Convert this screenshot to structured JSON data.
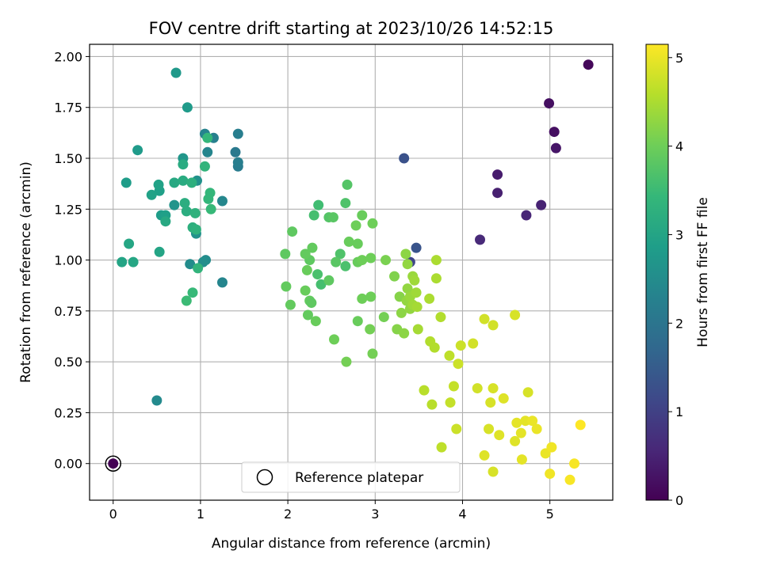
{
  "chart_data": {
    "type": "scatter",
    "title": "FOV centre drift starting at 2023/10/26 14:52:15",
    "xlabel": "Angular distance from reference (arcmin)",
    "ylabel": "Rotation from reference (arcmin)",
    "colorbar_label": "Hours from first FF file",
    "xlim": [
      -0.27,
      5.72
    ],
    "ylim": [
      -0.18,
      2.06
    ],
    "clim": [
      0,
      5.15
    ],
    "colormap": "viridis",
    "x_ticks": [
      0,
      1,
      2,
      3,
      4,
      5
    ],
    "x_tick_labels": [
      "0",
      "1",
      "2",
      "3",
      "4",
      "5"
    ],
    "y_ticks": [
      0,
      0.25,
      0.5,
      0.75,
      1.0,
      1.25,
      1.5,
      1.75,
      2.0
    ],
    "y_tick_labels": [
      "0.00",
      "0.25",
      "0.50",
      "0.75",
      "1.00",
      "1.25",
      "1.50",
      "1.75",
      "2.00"
    ],
    "colorbar_ticks": [
      0,
      1,
      2,
      3,
      4,
      5
    ],
    "colorbar_tick_labels": [
      "0",
      "1",
      "2",
      "3",
      "4",
      "5"
    ],
    "grid": true,
    "legend": {
      "placement": "lower-center",
      "entries": [
        "Reference platepar"
      ]
    },
    "reference_point": {
      "x": 0,
      "y": 0,
      "hours": 0
    },
    "points": [
      [
        5.44,
        1.96,
        0.1
      ],
      [
        4.99,
        1.77,
        0.2
      ],
      [
        5.05,
        1.63,
        0.2
      ],
      [
        5.07,
        1.55,
        0.3
      ],
      [
        4.4,
        1.42,
        0.4
      ],
      [
        4.4,
        1.33,
        0.45
      ],
      [
        4.9,
        1.27,
        0.5
      ],
      [
        4.73,
        1.22,
        0.55
      ],
      [
        4.2,
        1.1,
        0.6
      ],
      [
        3.33,
        1.5,
        1.3
      ],
      [
        3.47,
        1.06,
        1.35
      ],
      [
        3.4,
        0.99,
        1.1
      ],
      [
        0.5,
        0.31,
        2.45
      ],
      [
        1.25,
        0.89,
        2.35
      ],
      [
        1.43,
        1.62,
        2.2
      ],
      [
        1.4,
        1.53,
        2.1
      ],
      [
        1.43,
        1.46,
        2.15
      ],
      [
        1.43,
        1.48,
        2.2
      ],
      [
        1.15,
        1.6,
        2.25
      ],
      [
        1.05,
        1.62,
        2.3
      ],
      [
        1.08,
        1.53,
        2.35
      ],
      [
        1.08,
        1.6,
        3.4
      ],
      [
        1.25,
        1.29,
        2.4
      ],
      [
        1.06,
        1.0,
        2.5
      ],
      [
        0.88,
        0.98,
        2.5
      ],
      [
        1.03,
        0.99,
        2.55
      ],
      [
        0.96,
        1.39,
        2.6
      ],
      [
        0.95,
        1.13,
        2.6
      ],
      [
        0.7,
        1.27,
        2.65
      ],
      [
        0.8,
        1.5,
        2.7
      ],
      [
        0.72,
        1.92,
        2.75
      ],
      [
        0.85,
        1.75,
        2.8
      ],
      [
        0.28,
        1.54,
        2.8
      ],
      [
        0.15,
        1.38,
        2.85
      ],
      [
        0.55,
        1.22,
        2.85
      ],
      [
        0.6,
        1.22,
        2.9
      ],
      [
        0.53,
        1.34,
        2.9
      ],
      [
        0.52,
        1.37,
        2.95
      ],
      [
        0.44,
        1.32,
        2.95
      ],
      [
        0.53,
        1.04,
        3.0
      ],
      [
        0.1,
        0.99,
        3.0
      ],
      [
        0.23,
        0.99,
        3.05
      ],
      [
        0.18,
        1.08,
        3.05
      ],
      [
        0.6,
        1.19,
        3.1
      ],
      [
        0.7,
        1.38,
        3.1
      ],
      [
        0.8,
        1.39,
        3.15
      ],
      [
        0.8,
        1.47,
        3.15
      ],
      [
        0.82,
        1.28,
        3.2
      ],
      [
        0.84,
        1.24,
        3.2
      ],
      [
        0.9,
        1.38,
        3.25
      ],
      [
        0.91,
        1.16,
        3.25
      ],
      [
        0.94,
        1.23,
        3.3
      ],
      [
        0.95,
        1.15,
        3.3
      ],
      [
        0.97,
        0.96,
        3.35
      ],
      [
        1.05,
        1.46,
        3.35
      ],
      [
        1.09,
        1.3,
        3.4
      ],
      [
        1.11,
        1.33,
        3.4
      ],
      [
        1.12,
        1.25,
        3.45
      ],
      [
        0.91,
        0.84,
        3.45
      ],
      [
        0.84,
        0.8,
        3.5
      ],
      [
        2.35,
        1.27,
        3.55
      ],
      [
        2.3,
        1.22,
        3.6
      ],
      [
        2.38,
        0.88,
        3.6
      ],
      [
        2.34,
        0.93,
        3.65
      ],
      [
        2.66,
        0.97,
        3.65
      ],
      [
        2.6,
        1.03,
        3.7
      ],
      [
        2.66,
        1.28,
        3.7
      ],
      [
        2.68,
        1.37,
        3.75
      ],
      [
        2.47,
        1.21,
        3.75
      ],
      [
        2.52,
        1.21,
        3.8
      ],
      [
        2.55,
        0.99,
        3.8
      ],
      [
        2.47,
        0.9,
        3.85
      ],
      [
        2.25,
        1.0,
        3.85
      ],
      [
        2.28,
        1.06,
        3.9
      ],
      [
        2.2,
        1.03,
        3.9
      ],
      [
        2.22,
        0.95,
        3.95
      ],
      [
        2.2,
        0.85,
        3.95
      ],
      [
        2.25,
        0.8,
        3.9
      ],
      [
        2.27,
        0.79,
        3.85
      ],
      [
        2.23,
        0.73,
        3.9
      ],
      [
        2.32,
        0.7,
        3.95
      ],
      [
        2.03,
        0.78,
        3.9
      ],
      [
        1.98,
        0.87,
        3.9
      ],
      [
        1.97,
        1.03,
        3.85
      ],
      [
        2.05,
        1.14,
        3.85
      ],
      [
        2.8,
        1.08,
        3.95
      ],
      [
        2.7,
        1.09,
        3.95
      ],
      [
        2.78,
        1.17,
        4.0
      ],
      [
        2.85,
        1.22,
        3.95
      ],
      [
        2.97,
        1.18,
        4.0
      ],
      [
        2.8,
        0.99,
        3.95
      ],
      [
        2.85,
        1.0,
        4.0
      ],
      [
        2.95,
        1.01,
        4.0
      ],
      [
        2.8,
        0.7,
        3.95
      ],
      [
        2.85,
        0.81,
        4.0
      ],
      [
        2.95,
        0.82,
        4.0
      ],
      [
        2.94,
        0.66,
        4.05
      ],
      [
        2.97,
        0.54,
        4.05
      ],
      [
        2.67,
        0.5,
        4.05
      ],
      [
        2.53,
        0.61,
        4.0
      ],
      [
        3.1,
        0.72,
        4.05
      ],
      [
        3.12,
        1.0,
        4.1
      ],
      [
        3.22,
        0.92,
        4.15
      ],
      [
        3.25,
        0.66,
        4.2
      ],
      [
        3.28,
        0.82,
        4.2
      ],
      [
        3.3,
        0.74,
        4.25
      ],
      [
        3.33,
        0.64,
        4.25
      ],
      [
        3.37,
        0.86,
        4.3
      ],
      [
        3.36,
        0.8,
        4.3
      ],
      [
        3.4,
        0.76,
        4.3
      ],
      [
        3.4,
        0.82,
        4.35
      ],
      [
        3.43,
        0.92,
        4.35
      ],
      [
        3.45,
        0.9,
        4.4
      ],
      [
        3.47,
        0.84,
        4.4
      ],
      [
        3.43,
        0.78,
        4.4
      ],
      [
        3.48,
        0.77,
        4.45
      ],
      [
        3.49,
        0.66,
        4.45
      ],
      [
        3.35,
        1.03,
        4.25
      ],
      [
        3.37,
        0.98,
        4.3
      ],
      [
        3.62,
        0.81,
        4.5
      ],
      [
        3.7,
        1.0,
        4.5
      ],
      [
        3.7,
        0.91,
        4.5
      ],
      [
        3.75,
        0.72,
        4.55
      ],
      [
        3.63,
        0.6,
        4.55
      ],
      [
        3.68,
        0.57,
        4.55
      ],
      [
        3.56,
        0.36,
        4.6
      ],
      [
        3.65,
        0.29,
        4.6
      ],
      [
        3.76,
        0.08,
        4.65
      ],
      [
        3.85,
        0.53,
        4.65
      ],
      [
        3.86,
        0.3,
        4.7
      ],
      [
        3.9,
        0.38,
        4.7
      ],
      [
        3.95,
        0.49,
        4.75
      ],
      [
        3.98,
        0.58,
        4.75
      ],
      [
        3.93,
        0.17,
        4.75
      ],
      [
        4.12,
        0.59,
        4.8
      ],
      [
        4.17,
        0.37,
        4.8
      ],
      [
        4.25,
        0.71,
        4.8
      ],
      [
        4.35,
        0.68,
        4.8
      ],
      [
        4.35,
        0.37,
        4.85
      ],
      [
        4.32,
        0.3,
        4.85
      ],
      [
        4.3,
        0.17,
        4.85
      ],
      [
        4.35,
        -0.04,
        4.85
      ],
      [
        4.25,
        0.04,
        4.9
      ],
      [
        4.42,
        0.14,
        4.9
      ],
      [
        4.47,
        0.32,
        4.9
      ],
      [
        4.6,
        0.11,
        4.9
      ],
      [
        4.62,
        0.2,
        4.95
      ],
      [
        4.67,
        0.15,
        4.95
      ],
      [
        4.68,
        0.02,
        4.95
      ],
      [
        4.72,
        0.21,
        4.95
      ],
      [
        4.75,
        0.35,
        4.85
      ],
      [
        4.6,
        0.73,
        4.85
      ],
      [
        4.8,
        0.21,
        5.0
      ],
      [
        4.85,
        0.17,
        5.0
      ],
      [
        4.95,
        0.05,
        5.0
      ],
      [
        5.02,
        0.08,
        5.05
      ],
      [
        5.0,
        -0.05,
        5.05
      ],
      [
        5.23,
        -0.08,
        5.1
      ],
      [
        5.28,
        0.0,
        5.1
      ],
      [
        5.35,
        0.19,
        5.15
      ]
    ]
  },
  "colors": {
    "axes": "#000000",
    "grid": "#b0b0b0",
    "reference_fill": "#440154",
    "viridis": [
      "#440154",
      "#482878",
      "#3e4989",
      "#31688e",
      "#26828e",
      "#1f9e89",
      "#35b779",
      "#6ece58",
      "#b5de2b",
      "#fde725"
    ]
  }
}
